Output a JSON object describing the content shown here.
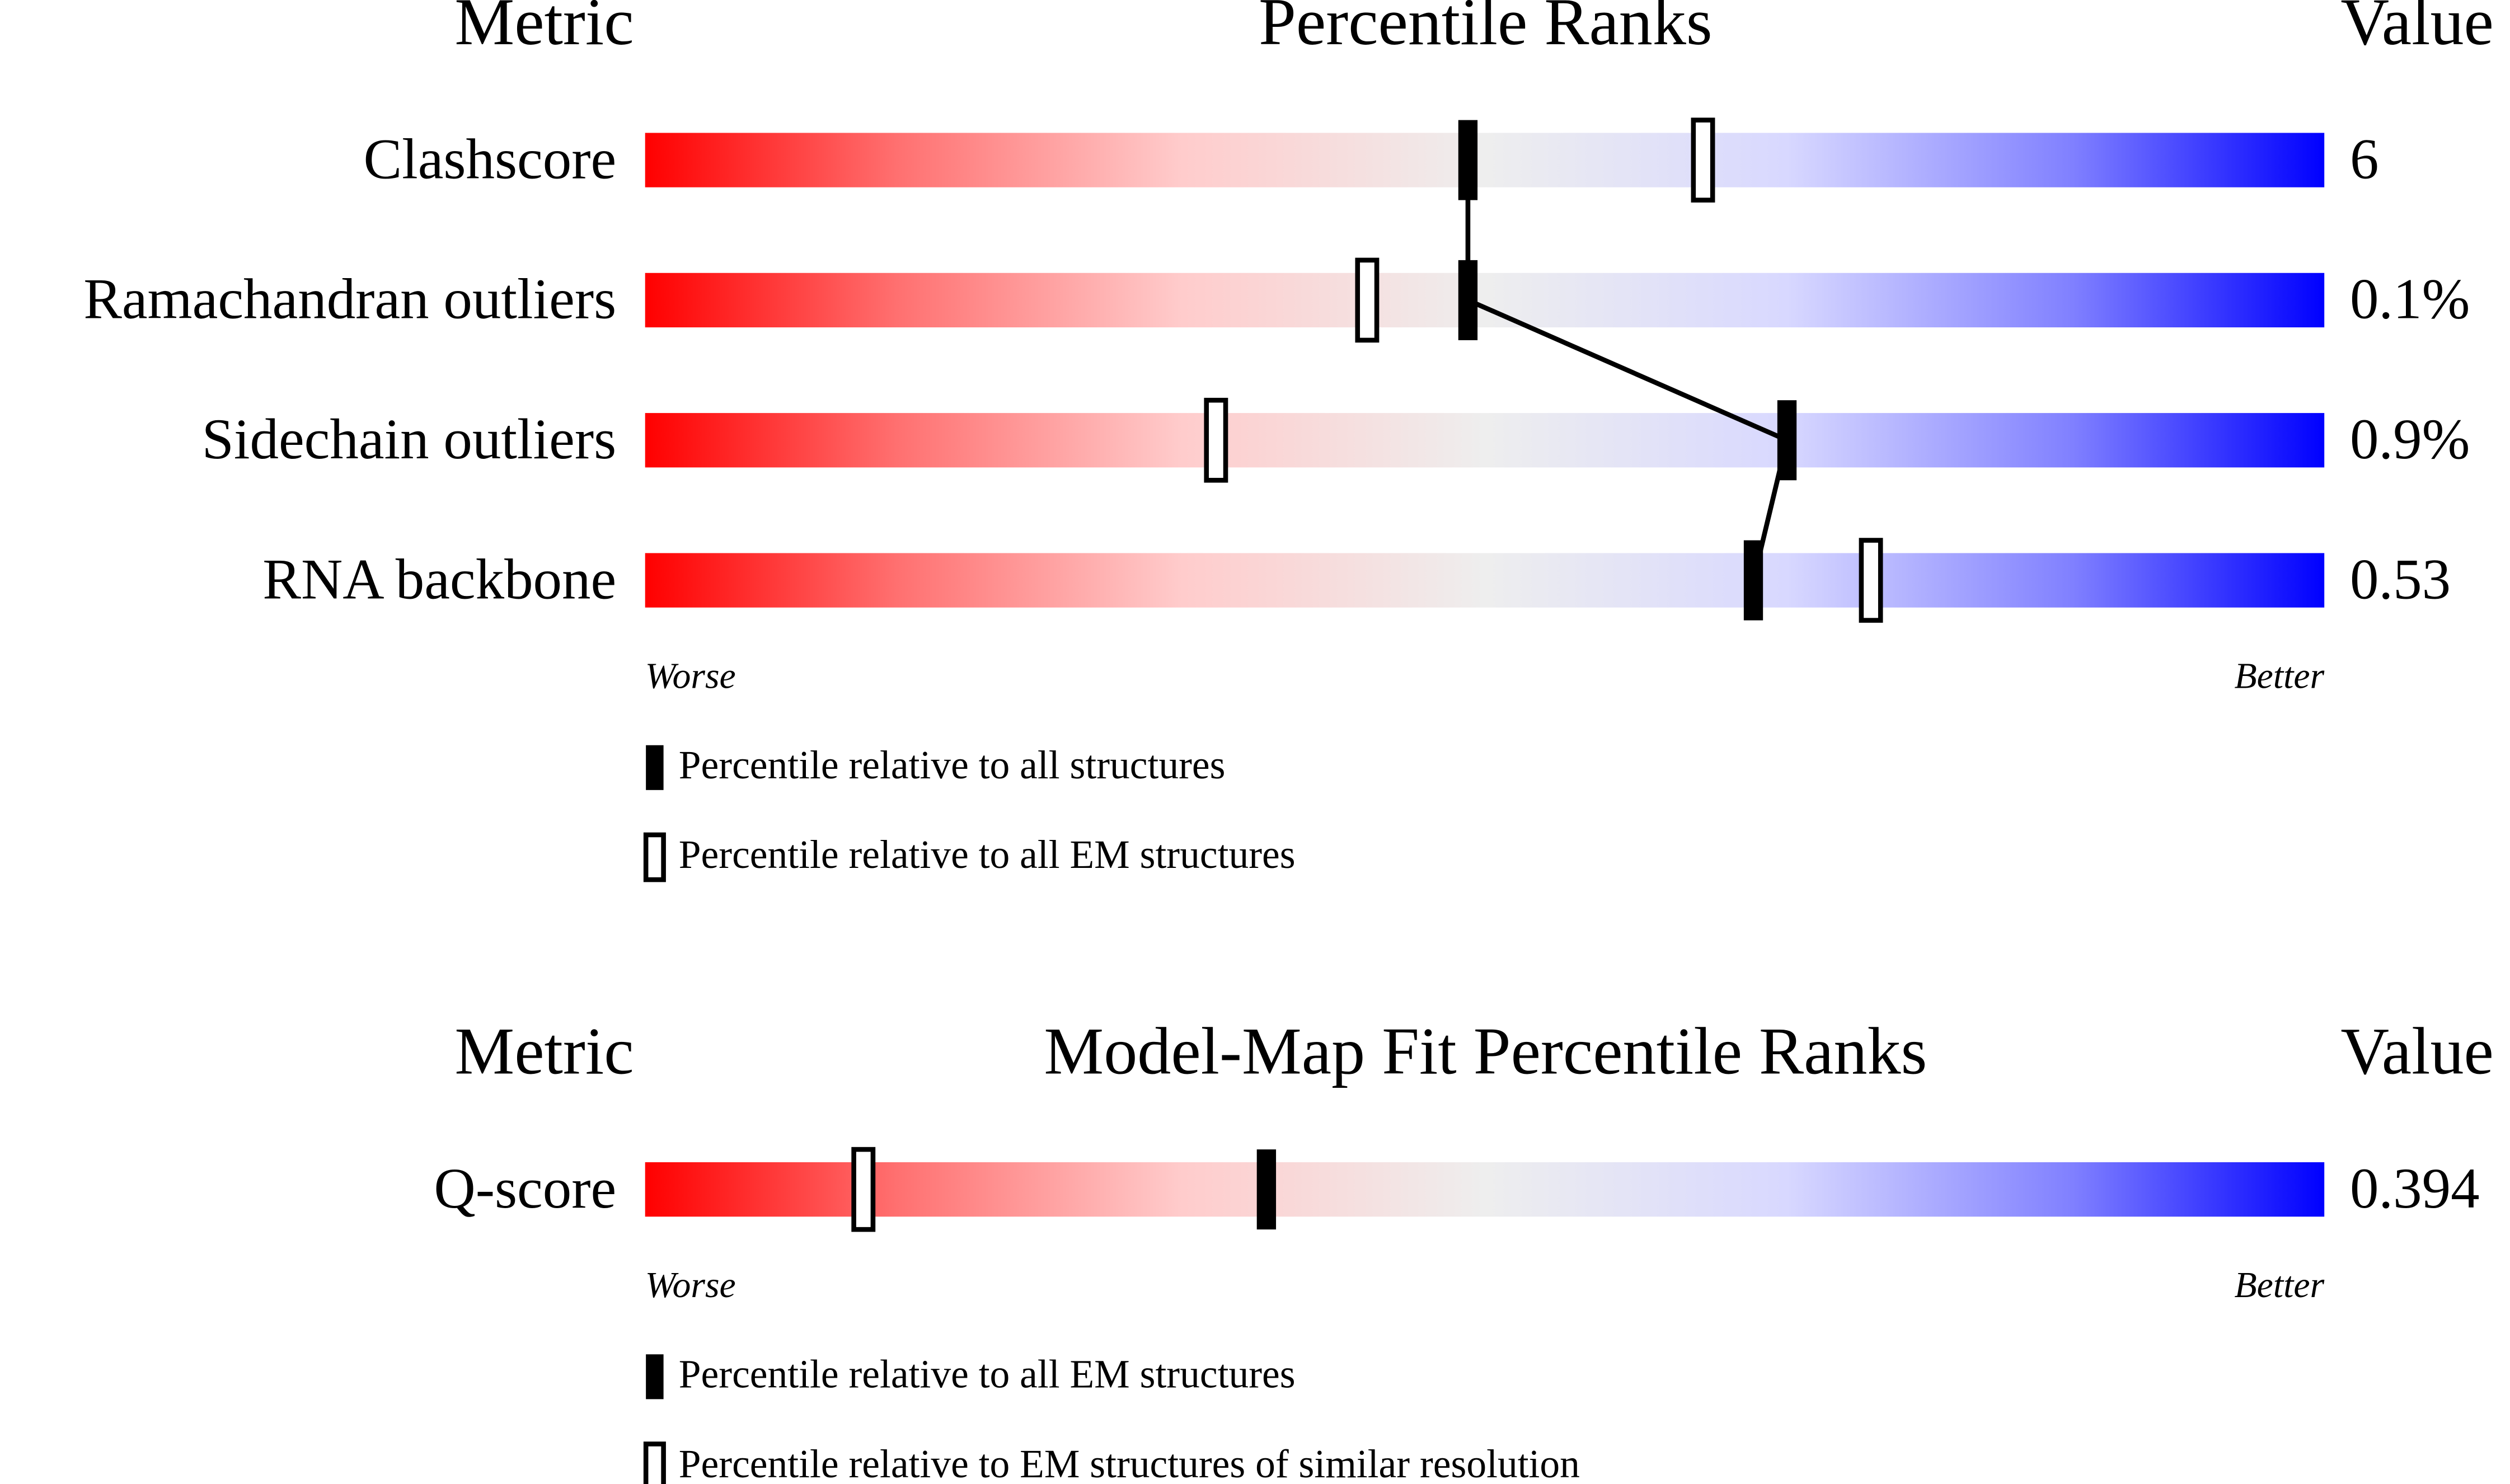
{
  "chart_data": [
    {
      "type": "percentile",
      "title": "Percentile Ranks",
      "metric_header": "Metric",
      "value_header": "Value",
      "worse_label": "Worse",
      "better_label": "Better",
      "xlim": [
        0,
        100
      ],
      "connect_first_series": true,
      "categories": [
        "Clashscore",
        "Ramachandran outliers",
        "Sidechain outliers",
        "RNA backbone"
      ],
      "metric_values": [
        "6",
        "0.1%",
        "0.9%",
        "0.53"
      ],
      "series": [
        {
          "name": "Percentile relative to all structures",
          "color": "#000000",
          "values": [
            49,
            49,
            68,
            66
          ]
        },
        {
          "name": "Percentile relative to all EM structures",
          "color": "#ffffff",
          "values": [
            63,
            43,
            34,
            73
          ]
        }
      ]
    },
    {
      "type": "percentile",
      "title": "Model-Map Fit Percentile Ranks",
      "metric_header": "Metric",
      "value_header": "Value",
      "worse_label": "Worse",
      "better_label": "Better",
      "xlim": [
        0,
        100
      ],
      "connect_first_series": false,
      "categories": [
        "Q-score"
      ],
      "metric_values": [
        "0.394"
      ],
      "series": [
        {
          "name": "Percentile relative to all EM structures",
          "color": "#000000",
          "values": [
            37
          ]
        },
        {
          "name": "Percentile relative to EM structures of similar resolution",
          "color": "#ffffff",
          "values": [
            13
          ]
        }
      ]
    }
  ]
}
